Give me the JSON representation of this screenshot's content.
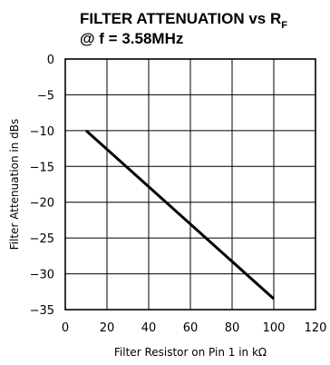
{
  "chart_data": {
    "type": "line",
    "title_line1": "FILTER ATTENUATION vs R",
    "title_subscript": "F",
    "title_line2": "@ f = 3.58MHz",
    "xlabel": "Filter Resistor on Pin 1 in kΩ",
    "ylabel": "Filter Attenuation in dBs",
    "xlim": [
      0,
      120
    ],
    "ylim": [
      -35,
      0
    ],
    "x_ticks": [
      "0",
      "20",
      "40",
      "60",
      "80",
      "100",
      "120"
    ],
    "y_ticks": [
      "0",
      "−5",
      "−10",
      "−15",
      "−20",
      "−25",
      "−30",
      "−35"
    ],
    "grid": true,
    "series": [
      {
        "x": [
          10,
          100
        ],
        "y": [
          -10,
          -33.5
        ]
      }
    ]
  }
}
